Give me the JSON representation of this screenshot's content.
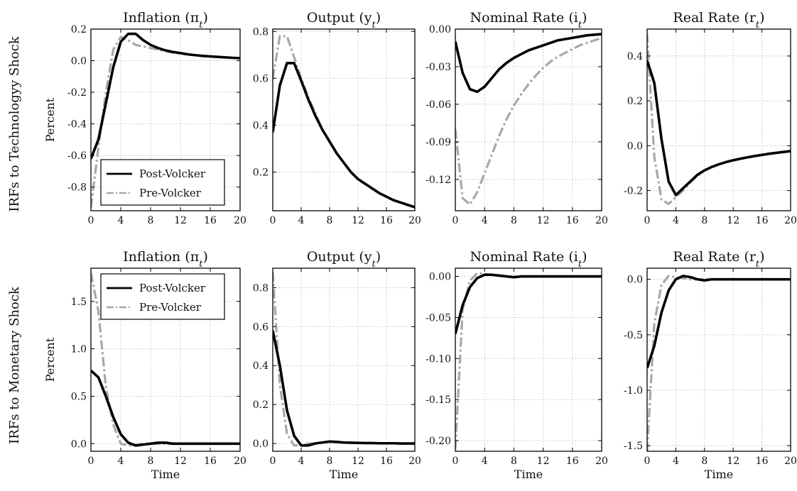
{
  "figure": {
    "row_labels": [
      "IRFs to Technologyy Shock",
      "IRFs to Monetary Shock"
    ],
    "ylabel": "Percent",
    "xlabel": "Time"
  },
  "colors": {
    "post": "#000000",
    "pre": "#a8a8a8",
    "grid": "#cfcfcf"
  },
  "chart_data": [
    {
      "type": "line",
      "row": 0,
      "col": 0,
      "title": "Inflation (π",
      "title_sub": "t",
      "ylabel": "Percent",
      "xlabel": "",
      "xlim": [
        0,
        20
      ],
      "ylim": [
        -0.95,
        0.2
      ],
      "xticks": [
        0,
        4,
        8,
        12,
        16,
        20
      ],
      "yticks": [
        -0.8,
        -0.6,
        -0.4,
        -0.2,
        0.0,
        0.2
      ],
      "ytick_labels": [
        "-0.8",
        "-0.6",
        "-0.4",
        "-0.2",
        "0.0",
        "0.2"
      ],
      "grid": true,
      "legend": {
        "placement": "lower-left",
        "entries": [
          "Post-Volcker",
          "Pre-Volcker"
        ]
      },
      "x": [
        0,
        1,
        2,
        3,
        4,
        5,
        6,
        7,
        8,
        9,
        10,
        11,
        12,
        13,
        14,
        15,
        16,
        17,
        18,
        19,
        20
      ],
      "series": [
        {
          "name": "Post-Volcker",
          "style": "solid",
          "values": [
            -0.62,
            -0.5,
            -0.27,
            -0.04,
            0.12,
            0.17,
            0.17,
            0.13,
            0.1,
            0.08,
            0.065,
            0.055,
            0.048,
            0.04,
            0.035,
            0.03,
            0.027,
            0.024,
            0.021,
            0.018,
            0.016
          ]
        },
        {
          "name": "Pre-Volcker",
          "style": "dashdot",
          "values": [
            -0.93,
            -0.55,
            -0.2,
            0.07,
            0.15,
            0.13,
            0.1,
            0.09,
            0.08,
            0.07,
            0.06,
            0.05,
            0.045,
            0.04,
            0.035,
            0.03,
            0.027,
            0.024,
            0.021,
            0.018,
            0.016
          ]
        }
      ]
    },
    {
      "type": "line",
      "row": 0,
      "col": 1,
      "title": "Output (y",
      "title_sub": "t",
      "ylabel": "",
      "xlabel": "",
      "xlim": [
        0,
        20
      ],
      "ylim": [
        0.035,
        0.81
      ],
      "xticks": [
        0,
        4,
        8,
        12,
        16,
        20
      ],
      "yticks": [
        0.2,
        0.4,
        0.6,
        0.8
      ],
      "ytick_labels": [
        "0.2",
        "0.4",
        "0.6",
        "0.8"
      ],
      "grid": true,
      "x": [
        0,
        1,
        2,
        3,
        4,
        5,
        6,
        7,
        8,
        9,
        10,
        11,
        12,
        13,
        14,
        15,
        16,
        17,
        18,
        19,
        20
      ],
      "series": [
        {
          "name": "Post-Volcker",
          "style": "solid",
          "values": [
            0.37,
            0.57,
            0.665,
            0.665,
            0.59,
            0.51,
            0.44,
            0.38,
            0.33,
            0.28,
            0.24,
            0.2,
            0.17,
            0.15,
            0.13,
            0.11,
            0.095,
            0.08,
            0.07,
            0.06,
            0.05
          ]
        },
        {
          "name": "Pre-Volcker",
          "style": "dashdot",
          "values": [
            0.6,
            0.78,
            0.78,
            0.69,
            0.6,
            0.52,
            0.45,
            0.38,
            0.33,
            0.28,
            0.24,
            0.2,
            0.17,
            0.15,
            0.13,
            0.11,
            0.095,
            0.08,
            0.07,
            0.06,
            0.05
          ]
        }
      ]
    },
    {
      "type": "line",
      "row": 0,
      "col": 2,
      "title": "Nominal Rate (i",
      "title_sub": "t",
      "ylabel": "",
      "xlabel": "",
      "xlim": [
        0,
        20
      ],
      "ylim": [
        -0.145,
        0.0
      ],
      "xticks": [
        0,
        4,
        8,
        12,
        16,
        20
      ],
      "yticks": [
        -0.12,
        -0.09,
        -0.06,
        -0.03,
        0.0
      ],
      "ytick_labels": [
        "-0.12",
        "-0.09",
        "-0.06",
        "-0.03",
        "0.00"
      ],
      "grid": true,
      "x": [
        0,
        1,
        2,
        3,
        4,
        5,
        6,
        7,
        8,
        9,
        10,
        11,
        12,
        13,
        14,
        15,
        16,
        17,
        18,
        19,
        20
      ],
      "series": [
        {
          "name": "Post-Volcker",
          "style": "solid",
          "values": [
            -0.01,
            -0.035,
            -0.048,
            -0.05,
            -0.046,
            -0.039,
            -0.032,
            -0.027,
            -0.023,
            -0.02,
            -0.017,
            -0.015,
            -0.013,
            -0.011,
            -0.009,
            -0.008,
            -0.007,
            -0.006,
            -0.005,
            -0.0045,
            -0.004
          ]
        },
        {
          "name": "Pre-Volcker",
          "style": "dashdot",
          "values": [
            -0.08,
            -0.135,
            -0.14,
            -0.13,
            -0.115,
            -0.1,
            -0.085,
            -0.072,
            -0.061,
            -0.052,
            -0.044,
            -0.037,
            -0.031,
            -0.026,
            -0.022,
            -0.019,
            -0.016,
            -0.013,
            -0.011,
            -0.009,
            -0.007
          ]
        }
      ]
    },
    {
      "type": "line",
      "row": 0,
      "col": 3,
      "title": "Real Rate (r",
      "title_sub": "t",
      "ylabel": "",
      "xlabel": "",
      "xlim": [
        0,
        20
      ],
      "ylim": [
        -0.29,
        0.52
      ],
      "xticks": [
        0,
        4,
        8,
        12,
        16,
        20
      ],
      "yticks": [
        -0.2,
        0.0,
        0.2,
        0.4
      ],
      "ytick_labels": [
        "-0.2",
        "0.0",
        "0.2",
        "0.4"
      ],
      "grid": true,
      "x": [
        0,
        1,
        2,
        3,
        4,
        5,
        6,
        7,
        8,
        9,
        10,
        11,
        12,
        13,
        14,
        15,
        16,
        17,
        18,
        19,
        20
      ],
      "series": [
        {
          "name": "Post-Volcker",
          "style": "solid",
          "values": [
            0.38,
            0.28,
            0.03,
            -0.16,
            -0.22,
            -0.19,
            -0.16,
            -0.13,
            -0.11,
            -0.095,
            -0.083,
            -0.073,
            -0.065,
            -0.058,
            -0.052,
            -0.046,
            -0.041,
            -0.036,
            -0.032,
            -0.028,
            -0.024
          ]
        },
        {
          "name": "Pre-Volcker",
          "style": "dashdot",
          "values": [
            0.5,
            -0.05,
            -0.24,
            -0.26,
            -0.23,
            -0.2,
            -0.165,
            -0.135,
            -0.11,
            -0.095,
            -0.083,
            -0.073,
            -0.065,
            -0.058,
            -0.052,
            -0.046,
            -0.041,
            -0.036,
            -0.032,
            -0.028,
            -0.024
          ]
        }
      ]
    },
    {
      "type": "line",
      "row": 1,
      "col": 0,
      "title": "Inflation (π",
      "title_sub": "t",
      "ylabel": "Percent",
      "xlabel": "Time",
      "xlim": [
        0,
        20
      ],
      "ylim": [
        -0.08,
        1.85
      ],
      "xticks": [
        0,
        4,
        8,
        12,
        16,
        20
      ],
      "yticks": [
        0.0,
        0.5,
        1.0,
        1.5
      ],
      "ytick_labels": [
        "0.0",
        "0.5",
        "1.0",
        "1.5"
      ],
      "grid": true,
      "legend": {
        "placement": "upper-left",
        "entries": [
          "Post-Volcker",
          "Pre-Volcker"
        ]
      },
      "x": [
        0,
        1,
        2,
        3,
        4,
        5,
        6,
        7,
        8,
        9,
        10,
        11,
        12,
        13,
        14,
        15,
        16,
        17,
        18,
        19,
        20
      ],
      "series": [
        {
          "name": "Post-Volcker",
          "style": "solid",
          "values": [
            0.77,
            0.7,
            0.5,
            0.28,
            0.1,
            0.01,
            -0.02,
            -0.01,
            0.0,
            0.01,
            0.01,
            0.0,
            0.0,
            0.0,
            0.0,
            0.0,
            0.0,
            0.0,
            0.0,
            0.0,
            0.0
          ]
        },
        {
          "name": "Pre-Volcker",
          "style": "dashdot",
          "values": [
            1.8,
            1.4,
            0.6,
            0.2,
            0.0,
            -0.02,
            -0.01,
            0.0,
            0.0,
            0.0,
            0.0,
            0.0,
            0.0,
            0.0,
            0.0,
            0.0,
            0.0,
            0.0,
            0.0,
            0.0,
            0.0
          ]
        }
      ]
    },
    {
      "type": "line",
      "row": 1,
      "col": 1,
      "title": "Output (y",
      "title_sub": "t",
      "ylabel": "",
      "xlabel": "Time",
      "xlim": [
        0,
        20
      ],
      "ylim": [
        -0.04,
        0.9
      ],
      "xticks": [
        0,
        4,
        8,
        12,
        16,
        20
      ],
      "yticks": [
        0.0,
        0.2,
        0.4,
        0.6,
        0.8
      ],
      "ytick_labels": [
        "0.0",
        "0.2",
        "0.4",
        "0.6",
        "0.8"
      ],
      "grid": true,
      "x": [
        0,
        1,
        2,
        3,
        4,
        5,
        6,
        7,
        8,
        9,
        10,
        11,
        12,
        13,
        14,
        15,
        16,
        17,
        18,
        19,
        20
      ],
      "series": [
        {
          "name": "Post-Volcker",
          "style": "solid",
          "values": [
            0.58,
            0.4,
            0.17,
            0.04,
            -0.01,
            -0.01,
            0.0,
            0.005,
            0.01,
            0.008,
            0.005,
            0.004,
            0.003,
            0.002,
            0.002,
            0.001,
            0.001,
            0.001,
            0.0,
            0.0,
            0.0
          ]
        },
        {
          "name": "Pre-Volcker",
          "style": "dashdot",
          "values": [
            0.88,
            0.3,
            0.05,
            -0.01,
            -0.01,
            0.0,
            0.0,
            0.005,
            0.008,
            0.006,
            0.005,
            0.004,
            0.003,
            0.002,
            0.002,
            0.001,
            0.001,
            0.001,
            0.0,
            0.0,
            0.0
          ]
        }
      ]
    },
    {
      "type": "line",
      "row": 1,
      "col": 2,
      "title": "Nominal Rate (i",
      "title_sub": "t",
      "ylabel": "",
      "xlabel": "Time",
      "xlim": [
        0,
        20
      ],
      "ylim": [
        -0.213,
        0.01
      ],
      "xticks": [
        0,
        4,
        8,
        12,
        16,
        20
      ],
      "yticks": [
        -0.2,
        -0.15,
        -0.1,
        -0.05,
        0.0
      ],
      "ytick_labels": [
        "-0.20",
        "-0.15",
        "-0.10",
        "-0.05",
        "0.00"
      ],
      "grid": true,
      "x": [
        0,
        1,
        2,
        3,
        4,
        5,
        6,
        7,
        8,
        9,
        10,
        11,
        12,
        13,
        14,
        15,
        16,
        17,
        18,
        19,
        20
      ],
      "series": [
        {
          "name": "Post-Volcker",
          "style": "solid",
          "values": [
            -0.07,
            -0.035,
            -0.013,
            -0.002,
            0.002,
            0.002,
            0.001,
            0.0,
            -0.001,
            0.0,
            0.0,
            0.0,
            0.0,
            0.0,
            0.0,
            0.0,
            0.0,
            0.0,
            0.0,
            0.0,
            0.0
          ]
        },
        {
          "name": "Pre-Volcker",
          "style": "dashdot",
          "values": [
            -0.21,
            -0.04,
            -0.005,
            0.004,
            0.003,
            0.002,
            0.001,
            0.0,
            0.0,
            0.0,
            0.0,
            0.0,
            0.0,
            0.0,
            0.0,
            0.0,
            0.0,
            0.0,
            0.0,
            0.0,
            0.0
          ]
        }
      ]
    },
    {
      "type": "line",
      "row": 1,
      "col": 3,
      "title": "Real Rate (r",
      "title_sub": "t",
      "ylabel": "",
      "xlabel": "Time",
      "xlim": [
        0,
        20
      ],
      "ylim": [
        -1.55,
        0.1
      ],
      "xticks": [
        0,
        4,
        8,
        12,
        16,
        20
      ],
      "yticks": [
        -1.5,
        -1.0,
        -0.5,
        0.0
      ],
      "ytick_labels": [
        "-1.5",
        "-1.0",
        "-0.5",
        "0.0"
      ],
      "grid": true,
      "x": [
        0,
        1,
        2,
        3,
        4,
        5,
        6,
        7,
        8,
        9,
        10,
        11,
        12,
        13,
        14,
        15,
        16,
        17,
        18,
        19,
        20
      ],
      "series": [
        {
          "name": "Post-Volcker",
          "style": "solid",
          "values": [
            -0.8,
            -0.6,
            -0.3,
            -0.1,
            0.0,
            0.03,
            0.02,
            0.0,
            -0.01,
            0.0,
            0.0,
            0.0,
            0.0,
            0.0,
            0.0,
            0.0,
            0.0,
            0.0,
            0.0,
            0.0,
            0.0
          ]
        },
        {
          "name": "Pre-Volcker",
          "style": "dashdot",
          "values": [
            -1.55,
            -0.4,
            -0.05,
            0.03,
            0.02,
            0.01,
            0.0,
            0.0,
            0.0,
            0.0,
            0.0,
            0.0,
            0.0,
            0.0,
            0.0,
            0.0,
            0.0,
            0.0,
            0.0,
            0.0,
            0.0
          ]
        }
      ]
    }
  ]
}
